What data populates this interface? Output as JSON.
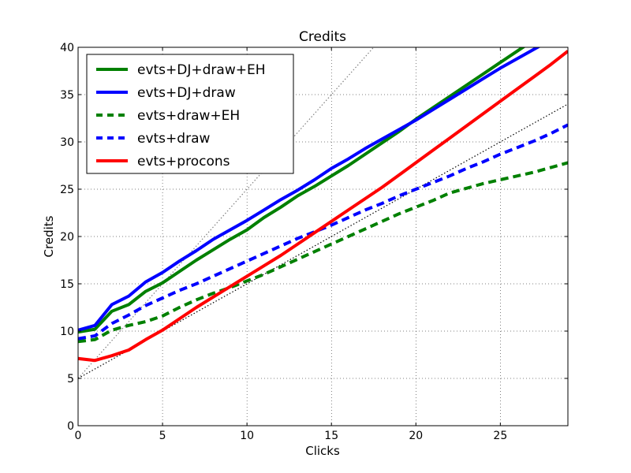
{
  "chart_data": {
    "type": "line",
    "title": "Credits",
    "xlabel": "Clicks",
    "ylabel": "Credits",
    "xlim": [
      0,
      29
    ],
    "ylim": [
      0,
      40
    ],
    "xticks": [
      0,
      5,
      10,
      15,
      20,
      25
    ],
    "yticks": [
      0,
      5,
      10,
      15,
      20,
      25,
      30,
      35,
      40
    ],
    "grid": true,
    "legend_position": "upper-left",
    "series": [
      {
        "name": "evts+DJ+draw+EH",
        "color": "#008000",
        "style": "solid",
        "x": [
          0,
          1,
          2,
          3,
          4,
          5,
          6,
          7,
          8,
          9,
          10,
          11,
          12,
          13,
          14,
          15,
          16,
          17,
          18,
          19,
          20,
          21,
          22,
          23,
          24,
          25,
          26,
          27
        ],
        "y": [
          9.9,
          10.2,
          12.1,
          12.8,
          14.2,
          15.1,
          16.3,
          17.5,
          18.6,
          19.7,
          20.7,
          22.0,
          23.1,
          24.3,
          25.3,
          26.4,
          27.5,
          28.7,
          29.9,
          31.1,
          32.4,
          33.6,
          34.8,
          36.0,
          37.2,
          38.4,
          39.6,
          40.8
        ]
      },
      {
        "name": "evts+DJ+draw",
        "color": "#0000ff",
        "style": "solid",
        "x": [
          0,
          1,
          2,
          3,
          4,
          5,
          6,
          7,
          8,
          9,
          10,
          11,
          12,
          13,
          14,
          15,
          16,
          17,
          18,
          19,
          20,
          21,
          22,
          23,
          24,
          25,
          26,
          27,
          28
        ],
        "y": [
          10.1,
          10.6,
          12.8,
          13.7,
          15.2,
          16.2,
          17.4,
          18.5,
          19.7,
          20.7,
          21.7,
          22.8,
          23.9,
          24.9,
          26.0,
          27.2,
          28.2,
          29.3,
          30.3,
          31.3,
          32.3,
          33.4,
          34.5,
          35.6,
          36.7,
          37.8,
          38.8,
          39.8,
          40.8
        ]
      },
      {
        "name": "evts+draw+EH",
        "color": "#008000",
        "style": "dashed",
        "x": [
          0,
          1,
          2,
          3,
          4,
          5,
          6,
          7,
          8,
          9,
          10,
          11,
          12,
          13,
          14,
          15,
          16,
          17,
          18,
          19,
          20,
          21,
          22,
          23,
          24,
          25,
          26,
          27,
          28,
          29
        ],
        "y": [
          8.9,
          9.1,
          10.1,
          10.6,
          11.0,
          11.6,
          12.5,
          13.3,
          14.0,
          14.6,
          15.3,
          16.0,
          16.8,
          17.6,
          18.4,
          19.2,
          20.0,
          20.8,
          21.6,
          22.4,
          23.1,
          23.8,
          24.6,
          25.1,
          25.6,
          26.0,
          26.4,
          26.8,
          27.3,
          27.8
        ]
      },
      {
        "name": "evts+draw",
        "color": "#0000ff",
        "style": "dashed",
        "x": [
          0,
          1,
          2,
          3,
          4,
          5,
          6,
          7,
          8,
          9,
          10,
          11,
          12,
          13,
          14,
          15,
          16,
          17,
          18,
          19,
          20,
          21,
          22,
          23,
          24,
          25,
          26,
          27,
          28,
          29
        ],
        "y": [
          9.2,
          9.5,
          10.8,
          11.7,
          12.7,
          13.5,
          14.3,
          15.0,
          15.8,
          16.6,
          17.4,
          18.2,
          19.0,
          19.8,
          20.5,
          21.2,
          22.0,
          22.8,
          23.5,
          24.3,
          25.0,
          25.7,
          26.4,
          27.2,
          27.9,
          28.7,
          29.4,
          30.1,
          30.9,
          31.8
        ]
      },
      {
        "name": "evts+procons",
        "color": "#ff0000",
        "style": "solid",
        "x": [
          0,
          1,
          2,
          3,
          4,
          5,
          6,
          7,
          8,
          9,
          10,
          11,
          12,
          13,
          14,
          15,
          16,
          17,
          18,
          19,
          20,
          21,
          22,
          23,
          24,
          25,
          26,
          27,
          28,
          29
        ],
        "y": [
          7.1,
          6.9,
          7.4,
          8.0,
          9.1,
          10.1,
          11.3,
          12.5,
          13.6,
          14.7,
          15.8,
          16.9,
          18.0,
          19.2,
          20.4,
          21.6,
          22.8,
          24.0,
          25.2,
          26.5,
          27.8,
          29.1,
          30.4,
          31.7,
          33.0,
          34.3,
          35.6,
          36.9,
          38.2,
          39.6
        ]
      }
    ],
    "reference_lines": [
      {
        "color": "#808080",
        "style": "dotted",
        "x": [
          0,
          17.5
        ],
        "y": [
          5,
          40
        ]
      },
      {
        "color": "#000000",
        "style": "dotted",
        "x": [
          0,
          29
        ],
        "y": [
          5,
          34
        ]
      }
    ]
  }
}
